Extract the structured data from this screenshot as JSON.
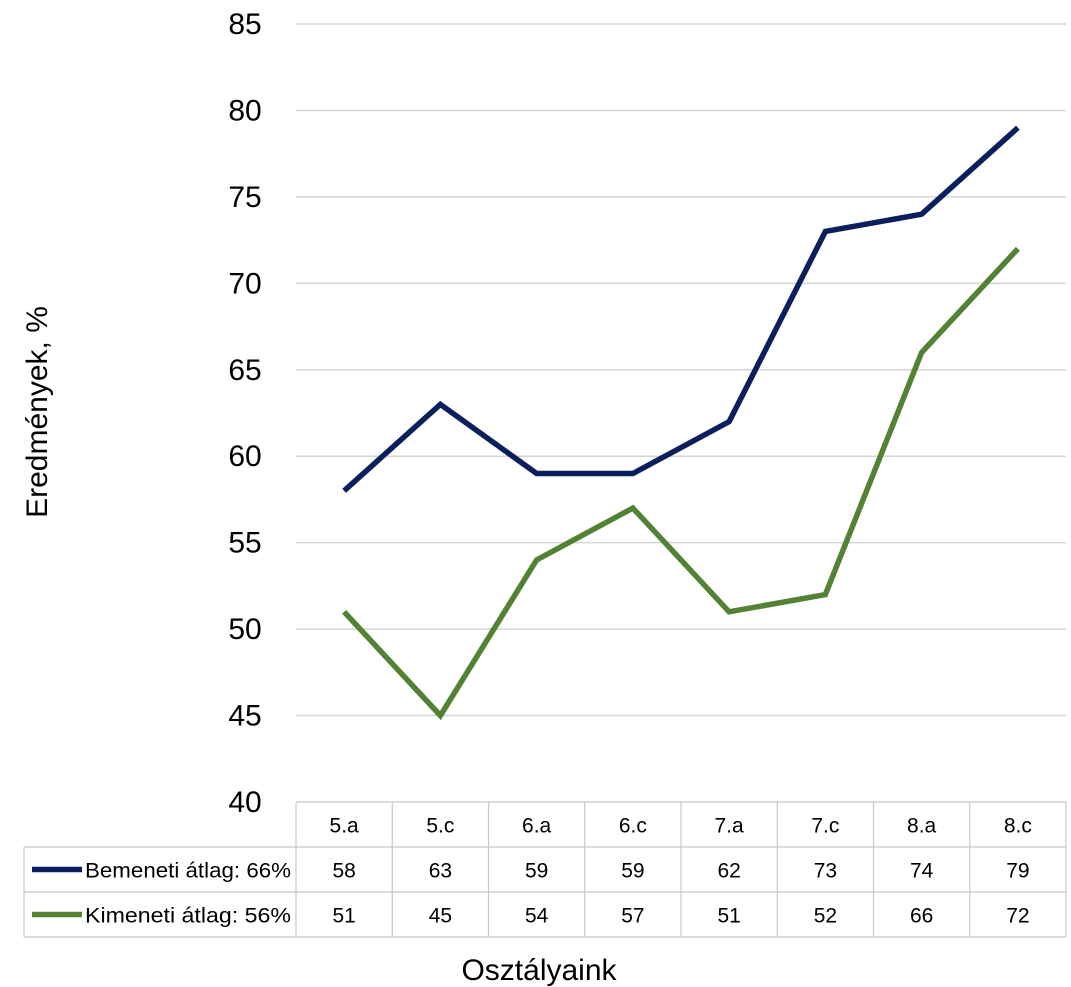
{
  "chart_data": {
    "type": "line",
    "categories": [
      "5.a",
      "5.c",
      "6.a",
      "6.c",
      "7.a",
      "7.c",
      "8.a",
      "8.c"
    ],
    "series": [
      {
        "name": "Bemeneti átlag: 66%",
        "values": [
          58,
          63,
          59,
          59,
          62,
          73,
          74,
          79
        ],
        "color": "#0b1f5c"
      },
      {
        "name": "Kimeneti átlag: 56%",
        "values": [
          51,
          45,
          54,
          57,
          51,
          52,
          66,
          72
        ],
        "color": "#548235"
      }
    ],
    "xlabel": "Osztályaink",
    "ylabel": "Eredmények, %",
    "ylim": [
      40,
      85
    ],
    "yticks": [
      "40",
      "45",
      "50",
      "55",
      "60",
      "65",
      "70",
      "75",
      "80",
      "85"
    ],
    "grid": true,
    "legend": "data-table"
  }
}
